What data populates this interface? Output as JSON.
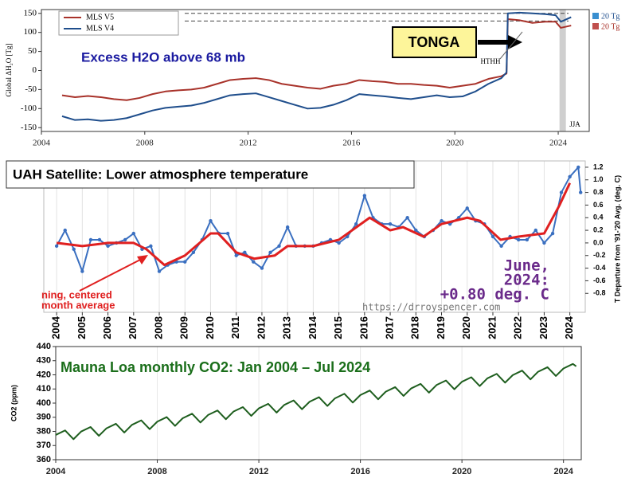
{
  "chart_data": [
    {
      "type": "line",
      "title": "Excess H2O above 68 mb",
      "ylabel": "Global ΔH₂O [Tg]",
      "annotations": [
        "TONGA",
        "HTHH",
        "JJA",
        "20 Tg",
        "20 Tg"
      ],
      "xlim": [
        2004,
        2025.2
      ],
      "xticks": [
        2004,
        2008,
        2012,
        2016,
        2020,
        2024
      ],
      "ylim": [
        -160,
        160
      ],
      "yticks": [
        150,
        100,
        50,
        0,
        -50,
        -100,
        -150
      ],
      "dashed_lines": [
        150,
        130
      ],
      "legend": "upper left",
      "grid": false,
      "x": [
        2004.8,
        2005.3,
        2005.8,
        2006.3,
        2006.8,
        2007.3,
        2007.8,
        2008.3,
        2008.8,
        2009.3,
        2009.8,
        2010.3,
        2010.8,
        2011.3,
        2011.8,
        2012.3,
        2012.8,
        2013.3,
        2013.8,
        2014.3,
        2014.8,
        2015.3,
        2015.8,
        2016.3,
        2016.8,
        2017.3,
        2017.8,
        2018.3,
        2018.8,
        2019.3,
        2019.8,
        2020.3,
        2020.8,
        2021.3,
        2021.8,
        2022.0,
        2022.05,
        2022.5,
        2023.0,
        2023.5,
        2023.9,
        2024.1,
        2024.5
      ],
      "series": [
        {
          "name": "MLS V5",
          "color": "#a8322a",
          "values": [
            -65,
            -70,
            -67,
            -70,
            -75,
            -78,
            -72,
            -62,
            -55,
            -52,
            -50,
            -45,
            -35,
            -25,
            -22,
            -20,
            -25,
            -35,
            -40,
            -45,
            -48,
            -40,
            -35,
            -25,
            -28,
            -30,
            -35,
            -35,
            -38,
            -40,
            -45,
            -40,
            -35,
            -22,
            -15,
            -8,
            135,
            132,
            125,
            128,
            128,
            112,
            118
          ]
        },
        {
          "name": "MLS V4",
          "color": "#1f4e8c",
          "values": [
            -120,
            -130,
            -128,
            -132,
            -130,
            -125,
            -115,
            -105,
            -98,
            -95,
            -92,
            -85,
            -75,
            -65,
            -62,
            -60,
            -70,
            -80,
            -90,
            -100,
            -98,
            -90,
            -78,
            -62,
            -65,
            -68,
            -72,
            -75,
            -70,
            -65,
            -70,
            -68,
            -55,
            -35,
            -20,
            -5,
            150,
            152,
            150,
            148,
            145,
            128,
            140
          ]
        }
      ]
    },
    {
      "type": "line",
      "title": "UAH Satellite: Lower atmosphere temperature",
      "ylabel": "T Departure from '91-'20 Avg. (deg. C)",
      "annotations": [
        "June,",
        "2024:",
        "+0.80 deg. C",
        "https://drroyspencer.com",
        "ning, centered",
        "month average"
      ],
      "xlim": [
        2003.5,
        2024.6
      ],
      "xticks": [
        2004,
        2005,
        2006,
        2007,
        2008,
        2009,
        2010,
        2011,
        2012,
        2013,
        2014,
        2015,
        2016,
        2017,
        2018,
        2019,
        2020,
        2021,
        2022,
        2023,
        2024
      ],
      "ylim": [
        -1.1,
        1.3
      ],
      "yticks": [
        1.2,
        {
          "value": 1,
          "label": "1.0"
        },
        0.8,
        0.6,
        0.4,
        0.2,
        {
          "value": 0,
          "label": "0.0"
        },
        -0.2,
        -0.4,
        -0.6,
        -0.8
      ],
      "y_axis_side": "right",
      "grid": true,
      "series": [
        {
          "color": "#3a6fc0",
          "marker": true,
          "x": [
            2004,
            2004.33,
            2004.67,
            2005,
            2005.33,
            2005.67,
            2006,
            2006.33,
            2006.67,
            2007,
            2007.33,
            2007.67,
            2008,
            2008.33,
            2008.67,
            2009,
            2009.33,
            2009.67,
            2010,
            2010.33,
            2010.67,
            2011,
            2011.33,
            2011.67,
            2012,
            2012.33,
            2012.67,
            2013,
            2013.33,
            2013.67,
            2014,
            2014.33,
            2014.67,
            2015,
            2015.33,
            2015.67,
            2016,
            2016.33,
            2016.67,
            2017,
            2017.33,
            2017.67,
            2018,
            2018.33,
            2018.67,
            2019,
            2019.33,
            2019.67,
            2020,
            2020.33,
            2020.67,
            2021,
            2021.33,
            2021.67,
            2022,
            2022.33,
            2022.67,
            2023,
            2023.33,
            2023.67,
            2024,
            2024.33,
            2024.42
          ],
          "values": [
            -0.05,
            0.2,
            -0.1,
            -0.45,
            0.05,
            0.05,
            -0.05,
            0.0,
            0.05,
            0.15,
            -0.1,
            -0.05,
            -0.45,
            -0.35,
            -0.3,
            -0.3,
            -0.15,
            0.05,
            0.35,
            0.15,
            0.15,
            -0.2,
            -0.15,
            -0.3,
            -0.4,
            -0.15,
            -0.05,
            0.25,
            -0.05,
            -0.05,
            -0.05,
            0.0,
            0.05,
            0.0,
            0.1,
            0.3,
            0.75,
            0.4,
            0.3,
            0.3,
            0.25,
            0.4,
            0.2,
            0.1,
            0.2,
            0.35,
            0.3,
            0.4,
            0.55,
            0.35,
            0.3,
            0.1,
            -0.05,
            0.1,
            0.05,
            0.05,
            0.2,
            0.0,
            0.15,
            0.8,
            1.05,
            1.2,
            0.8
          ]
        },
        {
          "color": "#e02020",
          "x": [
            2004.0,
            2005.0,
            2006.0,
            2007.0,
            2007.5,
            2008.2,
            2009.0,
            2010.0,
            2010.3,
            2011.0,
            2011.7,
            2012.5,
            2013.0,
            2014.0,
            2015.0,
            2016.2,
            2017.0,
            2017.5,
            2018.3,
            2019.0,
            2020.0,
            2020.5,
            2021.3,
            2022.0,
            2023.0,
            2023.6,
            2024.0
          ],
          "values": [
            0.0,
            -0.05,
            0.0,
            0.0,
            -0.1,
            -0.35,
            -0.2,
            0.15,
            0.15,
            -0.15,
            -0.25,
            -0.2,
            -0.05,
            -0.05,
            0.05,
            0.4,
            0.2,
            0.25,
            0.1,
            0.3,
            0.4,
            0.35,
            0.05,
            0.1,
            0.15,
            0.6,
            0.95
          ]
        }
      ]
    },
    {
      "type": "line",
      "title": "Mauna Loa monthly CO2:  Jan 2004 – Jul 2024",
      "ylabel": "CO2 (ppm)",
      "xlim": [
        2004,
        2024.7
      ],
      "xticks": [
        2004,
        2008,
        2012,
        2016,
        2020,
        2024
      ],
      "ylim": [
        360,
        440
      ],
      "yticks": [
        440,
        430,
        420,
        410,
        400,
        390,
        380,
        370,
        360
      ],
      "grid": true,
      "series": [
        {
          "color": "#1e5e1e",
          "x": [
            2004,
            2004.37,
            2004.7,
            2005,
            2005.37,
            2005.7,
            2006,
            2006.37,
            2006.7,
            2007,
            2007.37,
            2007.7,
            2008,
            2008.37,
            2008.7,
            2009,
            2009.37,
            2009.7,
            2010,
            2010.37,
            2010.7,
            2011,
            2011.37,
            2011.7,
            2012,
            2012.37,
            2012.7,
            2013,
            2013.37,
            2013.7,
            2014,
            2014.37,
            2014.7,
            2015,
            2015.37,
            2015.7,
            2016,
            2016.37,
            2016.7,
            2017,
            2017.37,
            2017.7,
            2018,
            2018.37,
            2018.7,
            2019,
            2019.37,
            2019.7,
            2020,
            2020.37,
            2020.7,
            2021,
            2021.37,
            2021.7,
            2022,
            2022.37,
            2022.7,
            2023,
            2023.37,
            2023.7,
            2024,
            2024.37,
            2024.5
          ],
          "values": [
            377.5,
            380.7,
            374.5,
            379.9,
            383.1,
            376.9,
            382.2,
            385.4,
            379.2,
            384.6,
            387.8,
            381.6,
            386.9,
            390.1,
            383.9,
            389.3,
            392.5,
            386.3,
            391.6,
            394.8,
            388.6,
            394.0,
            397.2,
            391.0,
            396.3,
            399.5,
            393.3,
            398.7,
            401.9,
            395.7,
            401.0,
            404.2,
            398.0,
            403.4,
            406.6,
            400.4,
            405.7,
            408.9,
            402.7,
            408.1,
            411.3,
            405.1,
            410.4,
            413.6,
            407.4,
            412.8,
            416.0,
            409.8,
            415.1,
            418.3,
            412.1,
            417.5,
            420.7,
            414.5,
            419.8,
            423.0,
            416.8,
            422.2,
            425.4,
            419.2,
            424.5,
            427.7,
            426.0
          ]
        }
      ]
    }
  ]
}
